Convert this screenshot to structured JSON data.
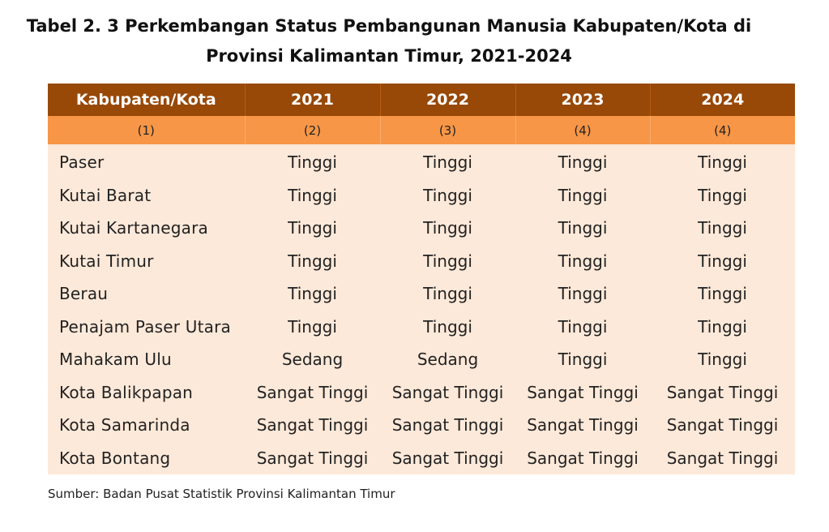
{
  "document": {
    "title_line1": "Tabel 2. 3 Perkembangan Status Pembangunan Manusia Kabupaten/Kota di",
    "title_line2": "Provinsi Kalimantan Timur, 2021-2024",
    "source": "Sumber: Badan Pusat Statistik Provinsi Kalimantan Timur"
  },
  "table": {
    "headers": [
      "Kabupaten/Kota",
      "2021",
      "2022",
      "2023",
      "2024"
    ],
    "column_numbers": [
      "(1)",
      "(2)",
      "(3)",
      "(4)",
      "(4)"
    ],
    "rows": [
      {
        "name": "Paser",
        "values": [
          "Tinggi",
          "Tinggi",
          "Tinggi",
          "Tinggi"
        ]
      },
      {
        "name": "Kutai Barat",
        "values": [
          "Tinggi",
          "Tinggi",
          "Tinggi",
          "Tinggi"
        ]
      },
      {
        "name": "Kutai Kartanegara",
        "values": [
          "Tinggi",
          "Tinggi",
          "Tinggi",
          "Tinggi"
        ]
      },
      {
        "name": "Kutai Timur",
        "values": [
          "Tinggi",
          "Tinggi",
          "Tinggi",
          "Tinggi"
        ]
      },
      {
        "name": "Berau",
        "values": [
          "Tinggi",
          "Tinggi",
          "Tinggi",
          "Tinggi"
        ]
      },
      {
        "name": "Penajam Paser Utara",
        "values": [
          "Tinggi",
          "Tinggi",
          "Tinggi",
          "Tinggi"
        ]
      },
      {
        "name": "Mahakam Ulu",
        "values": [
          "Sedang",
          "Sedang",
          "Tinggi",
          "Tinggi"
        ]
      },
      {
        "name": "Kota Balikpapan",
        "values": [
          "Sangat Tinggi",
          "Sangat Tinggi",
          "Sangat Tinggi",
          "Sangat Tinggi"
        ]
      },
      {
        "name": "Kota Samarinda",
        "values": [
          "Sangat Tinggi",
          "Sangat Tinggi",
          "Sangat Tinggi",
          "Sangat Tinggi"
        ]
      },
      {
        "name": "Kota Bontang",
        "values": [
          "Sangat Tinggi",
          "Sangat Tinggi",
          "Sangat Tinggi",
          "Sangat Tinggi"
        ]
      }
    ]
  },
  "colors": {
    "header_bg": "#984807",
    "subheader_bg": "#f79646",
    "body_bg": "#fde9d9"
  }
}
